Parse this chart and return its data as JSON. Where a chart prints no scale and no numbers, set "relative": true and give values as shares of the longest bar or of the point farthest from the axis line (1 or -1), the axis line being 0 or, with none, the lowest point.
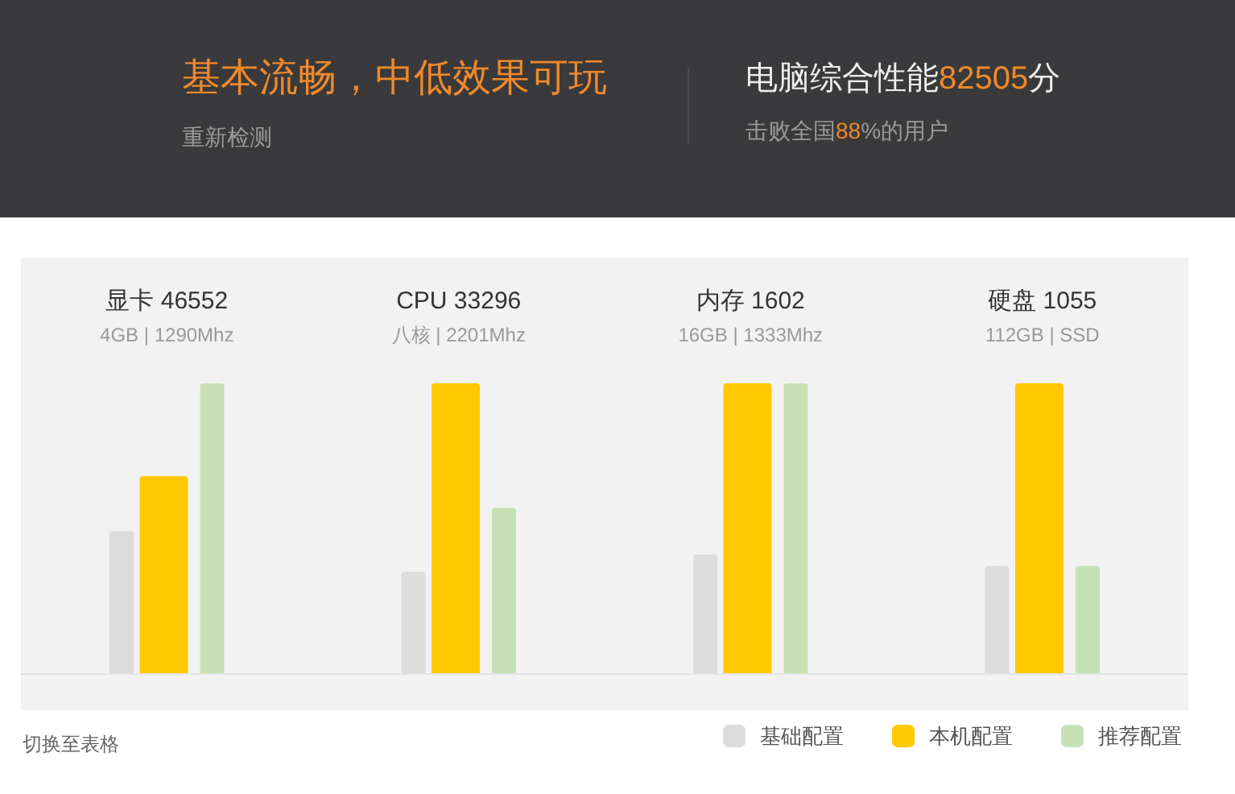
{
  "chart_data": {
    "type": "bar",
    "title": "基本流畅，中低效果可玩",
    "subtitle": "重新检测",
    "annotations": [
      "电脑综合性能82505分",
      "击败全国88%的用户",
      "切换至表格"
    ],
    "categories": [
      "显卡 46552\n4GB | 1290Mhz",
      "CPU 33296\n八核 | 2201Mhz",
      "内存 1602\n16GB | 1333Mhz",
      "硬盘 1055\n112GB | SSD"
    ],
    "relative": true,
    "series": [
      {
        "name": "基础配置",
        "color": "#dcdcdc",
        "values": [
          0.49,
          0.35,
          0.41,
          0.37
        ]
      },
      {
        "name": "本机配置",
        "color": "#ffc800",
        "values": [
          0.68,
          1,
          1,
          1
        ]
      },
      {
        "name": "推荐配置",
        "color": "#c6e1b5",
        "values": [
          1,
          0.57,
          1,
          0.37
        ]
      }
    ],
    "legend": "bottom right"
  }
}
